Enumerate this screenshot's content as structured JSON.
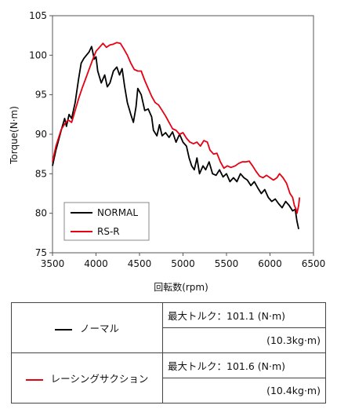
{
  "chart_data": {
    "type": "line",
    "xlabel": "回転数(rpm)",
    "ylabel": "Torque(N·m)",
    "xlim": [
      3500,
      6500
    ],
    "ylim": [
      75,
      105
    ],
    "xticks": [
      3500,
      4000,
      4500,
      5000,
      5500,
      6000,
      6500
    ],
    "yticks": [
      75,
      80,
      85,
      90,
      95,
      100,
      105
    ],
    "grid": false,
    "legend": "bottom-left",
    "series": [
      {
        "name": "NORMAL",
        "color": "#000000",
        "points": [
          [
            3500,
            86
          ],
          [
            3540,
            88
          ],
          [
            3600,
            90.5
          ],
          [
            3640,
            92
          ],
          [
            3660,
            91
          ],
          [
            3690,
            92.5
          ],
          [
            3720,
            92
          ],
          [
            3760,
            94
          ],
          [
            3800,
            97
          ],
          [
            3830,
            99
          ],
          [
            3860,
            99.6
          ],
          [
            3890,
            100
          ],
          [
            3920,
            100.4
          ],
          [
            3950,
            101.1
          ],
          [
            3980,
            99.5
          ],
          [
            4000,
            99.8
          ],
          [
            4020,
            98
          ],
          [
            4060,
            96.5
          ],
          [
            4100,
            97.5
          ],
          [
            4130,
            96
          ],
          [
            4160,
            96.5
          ],
          [
            4200,
            98
          ],
          [
            4240,
            98.5
          ],
          [
            4270,
            97.5
          ],
          [
            4300,
            98.3
          ],
          [
            4330,
            96
          ],
          [
            4360,
            94
          ],
          [
            4400,
            92.5
          ],
          [
            4430,
            91.5
          ],
          [
            4460,
            93.5
          ],
          [
            4480,
            95.8
          ],
          [
            4520,
            95
          ],
          [
            4560,
            93
          ],
          [
            4600,
            93.2
          ],
          [
            4640,
            92.2
          ],
          [
            4660,
            90.5
          ],
          [
            4700,
            89.8
          ],
          [
            4730,
            91.2
          ],
          [
            4760,
            89.8
          ],
          [
            4800,
            90.2
          ],
          [
            4840,
            89.6
          ],
          [
            4880,
            90.3
          ],
          [
            4920,
            89
          ],
          [
            4960,
            90
          ],
          [
            5000,
            89
          ],
          [
            5040,
            88.5
          ],
          [
            5070,
            87
          ],
          [
            5100,
            86
          ],
          [
            5130,
            85.5
          ],
          [
            5160,
            87
          ],
          [
            5190,
            85
          ],
          [
            5230,
            86
          ],
          [
            5260,
            85.5
          ],
          [
            5300,
            86.5
          ],
          [
            5340,
            85
          ],
          [
            5380,
            84.8
          ],
          [
            5420,
            85.5
          ],
          [
            5460,
            84.6
          ],
          [
            5500,
            85
          ],
          [
            5540,
            84
          ],
          [
            5580,
            84.5
          ],
          [
            5620,
            84
          ],
          [
            5660,
            85
          ],
          [
            5700,
            84.5
          ],
          [
            5740,
            84.2
          ],
          [
            5780,
            83.5
          ],
          [
            5820,
            84
          ],
          [
            5860,
            83.2
          ],
          [
            5900,
            82.5
          ],
          [
            5940,
            83
          ],
          [
            5980,
            82
          ],
          [
            6020,
            81.5
          ],
          [
            6060,
            81.8
          ],
          [
            6100,
            81.2
          ],
          [
            6140,
            80.7
          ],
          [
            6180,
            81.5
          ],
          [
            6220,
            81
          ],
          [
            6260,
            80.3
          ],
          [
            6290,
            80.5
          ],
          [
            6310,
            79
          ],
          [
            6330,
            78
          ]
        ]
      },
      {
        "name": "RS-R",
        "color": "#e60012",
        "points": [
          [
            3500,
            86.5
          ],
          [
            3540,
            88.5
          ],
          [
            3600,
            90.6
          ],
          [
            3640,
            91.3
          ],
          [
            3680,
            91.8
          ],
          [
            3720,
            91.5
          ],
          [
            3760,
            93
          ],
          [
            3800,
            94.5
          ],
          [
            3840,
            95.8
          ],
          [
            3880,
            97
          ],
          [
            3920,
            98.2
          ],
          [
            3960,
            99.4
          ],
          [
            4000,
            100.5
          ],
          [
            4040,
            101
          ],
          [
            4080,
            101.5
          ],
          [
            4120,
            101
          ],
          [
            4160,
            101.3
          ],
          [
            4200,
            101.4
          ],
          [
            4240,
            101.6
          ],
          [
            4280,
            101.5
          ],
          [
            4320,
            100.8
          ],
          [
            4360,
            100
          ],
          [
            4400,
            99
          ],
          [
            4440,
            98.2
          ],
          [
            4480,
            98
          ],
          [
            4520,
            98
          ],
          [
            4560,
            96.8
          ],
          [
            4600,
            95.8
          ],
          [
            4640,
            94.8
          ],
          [
            4680,
            94
          ],
          [
            4720,
            93.7
          ],
          [
            4760,
            93
          ],
          [
            4800,
            92.3
          ],
          [
            4840,
            91.5
          ],
          [
            4880,
            90.7
          ],
          [
            4920,
            90.5
          ],
          [
            4960,
            90
          ],
          [
            5000,
            90.2
          ],
          [
            5040,
            89.5
          ],
          [
            5080,
            89
          ],
          [
            5120,
            88.8
          ],
          [
            5160,
            89
          ],
          [
            5200,
            88.5
          ],
          [
            5240,
            89.2
          ],
          [
            5280,
            89
          ],
          [
            5310,
            88
          ],
          [
            5350,
            87.5
          ],
          [
            5390,
            87.6
          ],
          [
            5430,
            86.5
          ],
          [
            5470,
            85.7
          ],
          [
            5510,
            86
          ],
          [
            5550,
            85.8
          ],
          [
            5600,
            86
          ],
          [
            5640,
            86.3
          ],
          [
            5680,
            86.5
          ],
          [
            5720,
            86.5
          ],
          [
            5760,
            86.6
          ],
          [
            5800,
            86
          ],
          [
            5840,
            85.3
          ],
          [
            5880,
            84.7
          ],
          [
            5920,
            84.5
          ],
          [
            5960,
            84.8
          ],
          [
            6000,
            84.5
          ],
          [
            6040,
            84.2
          ],
          [
            6080,
            84.5
          ],
          [
            6110,
            85
          ],
          [
            6150,
            84.5
          ],
          [
            6190,
            83.8
          ],
          [
            6230,
            82.5
          ],
          [
            6260,
            82
          ],
          [
            6280,
            81
          ],
          [
            6300,
            80.5
          ],
          [
            6310,
            80
          ],
          [
            6330,
            81
          ],
          [
            6340,
            82
          ]
        ]
      }
    ]
  },
  "table": {
    "rows": [
      {
        "name": "ノーマル",
        "color": "#000000",
        "max_torque": "最大トルク：101.1 (N·m)",
        "kg": "(10.3kg·m)"
      },
      {
        "name": "レーシングサクション",
        "color": "#e60012",
        "max_torque": "最大トルク：101.6 (N·m)",
        "kg": "(10.4kg·m)"
      }
    ]
  }
}
